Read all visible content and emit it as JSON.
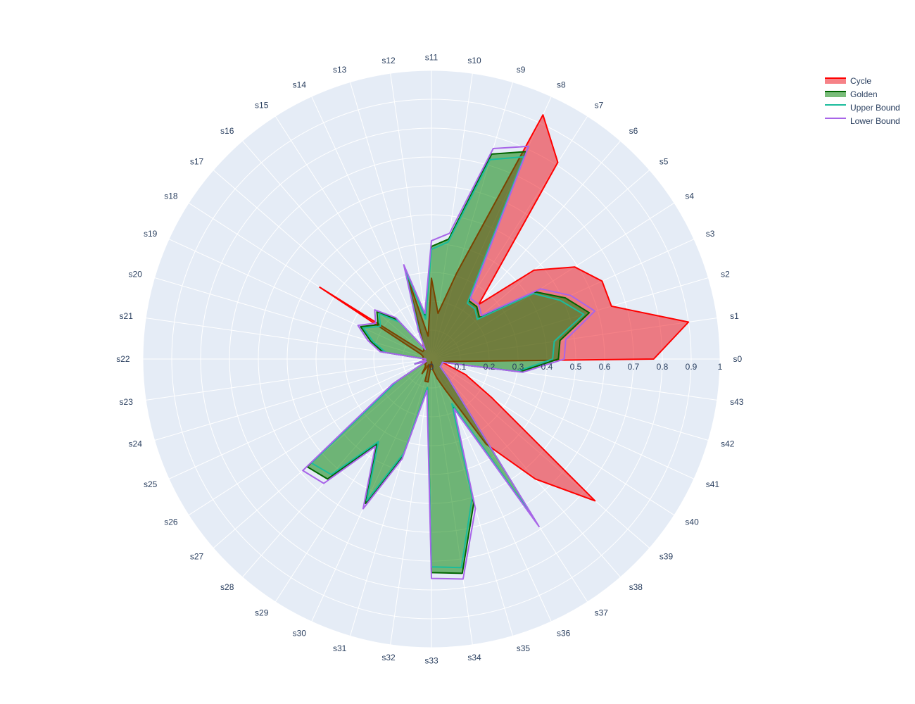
{
  "chart_data": {
    "type": "radar",
    "radial_range": [
      0,
      1
    ],
    "radial_ticks": [
      "0",
      "0.1",
      "0.2",
      "0.3",
      "0.4",
      "0.5",
      "0.6",
      "0.7",
      "0.8",
      "0.9",
      "1"
    ],
    "categories": [
      "s0",
      "s1",
      "s2",
      "s3",
      "s4",
      "s5",
      "s6",
      "s7",
      "s8",
      "s9",
      "s10",
      "s11",
      "s12",
      "s13",
      "s14",
      "s15",
      "s16",
      "s17",
      "s18",
      "s19",
      "s20",
      "s21",
      "s22",
      "s23",
      "s24",
      "s25",
      "s26",
      "s27",
      "s28",
      "s29",
      "s30",
      "s31",
      "s32",
      "s33",
      "s34",
      "s35",
      "s36",
      "s37",
      "s38",
      "s39",
      "s40",
      "s41",
      "s42",
      "s43"
    ],
    "legend_position": "top-right",
    "grid": true,
    "series": [
      {
        "name": "Cycle",
        "line_color": "#ff0000",
        "fill_color": "rgba(240,40,48,0.58)",
        "values": [
          0.77,
          0.9,
          0.65,
          0.65,
          0.59,
          0.47,
          0.25,
          0.81,
          0.93,
          0.31,
          0.16,
          0.28,
          0.08,
          0.3,
          0.08,
          0.05,
          0.04,
          0.04,
          0.46,
          0.04,
          0.03,
          0.03,
          0.03,
          0.02,
          0.02,
          0.02,
          0.02,
          0.03,
          0.03,
          0.06,
          0.02,
          0.08,
          0.08,
          0.01,
          0.04,
          0.07,
          0.12,
          0.35,
          0.55,
          0.75,
          0.25,
          0.13,
          0.04,
          0.06
        ]
      },
      {
        "name": "Golden",
        "line_color": "#006400",
        "fill_color": "rgba(0,128,0,0.52)",
        "values": [
          0.44,
          0.45,
          0.57,
          0.51,
          0.43,
          0.22,
          0.24,
          0.24,
          0.79,
          0.74,
          0.42,
          0.39,
          0.15,
          0.33,
          0.1,
          0.04,
          0.18,
          0.25,
          0.22,
          0.27,
          0.22,
          0.17,
          0.02,
          0.02,
          0.06,
          0.02,
          0.15,
          0.57,
          0.55,
          0.35,
          0.55,
          0.35,
          0.1,
          0.74,
          0.75,
          0.52,
          0.18,
          0.67,
          0.09,
          0.04,
          0.04,
          0.04,
          0.04,
          0.31
        ]
      },
      {
        "name": "Upper Bound",
        "line_color": "#1abc9c",
        "fill_color": "none",
        "values": [
          0.42,
          0.43,
          0.55,
          0.49,
          0.42,
          0.21,
          0.23,
          0.23,
          0.77,
          0.72,
          0.41,
          0.38,
          0.14,
          0.32,
          0.1,
          0.04,
          0.17,
          0.24,
          0.21,
          0.26,
          0.21,
          0.16,
          0.02,
          0.02,
          0.06,
          0.02,
          0.14,
          0.55,
          0.53,
          0.34,
          0.54,
          0.34,
          0.1,
          0.72,
          0.73,
          0.5,
          0.17,
          0.66,
          0.09,
          0.04,
          0.04,
          0.04,
          0.04,
          0.3
        ]
      },
      {
        "name": "Lower Bound",
        "line_color": "#a865e8",
        "fill_color": "none",
        "values": [
          0.46,
          0.47,
          0.59,
          0.53,
          0.45,
          0.23,
          0.25,
          0.25,
          0.81,
          0.76,
          0.44,
          0.41,
          0.16,
          0.34,
          0.11,
          0.04,
          0.19,
          0.26,
          0.23,
          0.28,
          0.23,
          0.18,
          0.02,
          0.02,
          0.06,
          0.02,
          0.16,
          0.59,
          0.57,
          0.36,
          0.57,
          0.36,
          0.11,
          0.76,
          0.77,
          0.54,
          0.19,
          0.69,
          0.09,
          0.04,
          0.04,
          0.04,
          0.04,
          0.32
        ]
      }
    ]
  }
}
